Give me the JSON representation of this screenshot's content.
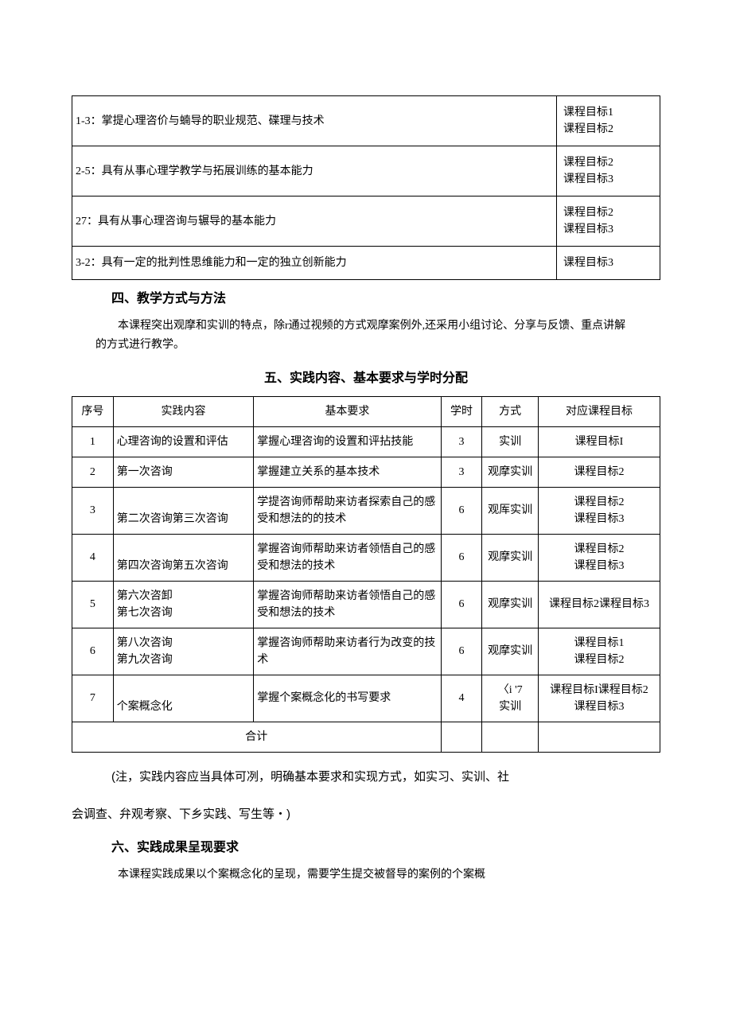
{
  "table1": {
    "rows": [
      {
        "req": "1-3：掌提心理咨价与蝻导的职业规范、碟理与技术",
        "goals": "课程目标1\n课程目标2"
      },
      {
        "req": "2-5：具有从事心理学教学与拓展训练的基本能力",
        "goals": "课程目标2\n课程目标3"
      },
      {
        "req": "27：具有从事心理咨询与辗导的基本能力",
        "goals": "课程目标2\n课程目标3"
      },
      {
        "req": "3-2：具有一定的批判性思维能力和一定的独立创新能力",
        "goals": "课程目标3"
      }
    ]
  },
  "section4": {
    "heading": "四、教学方式与方法",
    "body": "本课程突出观摩和实训的特点，除r通过视频的方式观摩案例外,还采用小组讨论、分享与反馈、重点讲解的方式进行教学。"
  },
  "section5": {
    "heading": "五、实践内容、基本要求与学时分配",
    "columns": [
      "序号",
      "实践内容",
      "基本要求",
      "学时",
      "方式",
      "对应课程目标"
    ],
    "rows": [
      {
        "seq": "1",
        "content": "心理咨询的设置和评估",
        "req": "掌握心理咨询的设置和评拈技能",
        "hours": "3",
        "mode": "实训",
        "goal": "课程目标I"
      },
      {
        "seq": "2",
        "content": "第一次咨询",
        "req": "掌握建立关系的基本技术",
        "hours": "3",
        "mode": "观摩实训",
        "goal": "课程目标2"
      },
      {
        "seq": "3",
        "content": "第二次咨询第三次咨询",
        "req": "学提咨询师帮助来访者探索自己的感受和想法的的技术",
        "hours": "6",
        "mode": "观厍实训",
        "goal": "课程目标2\n课程目标3"
      },
      {
        "seq": "4",
        "content": "第四次咨询第五次咨询",
        "req": "掌握咨询师帮助来访者领悟自己的感受和想法的技术",
        "hours": "6",
        "mode": "观摩实训",
        "goal": "课程目标2\n课程目标3"
      },
      {
        "seq": "5",
        "content": "第六次咨卸\n第七次咨询",
        "req": "掌握咨询师帮助来访者领悟自己的感受和想法的技术",
        "hours": "6",
        "mode": "观摩实训",
        "goal": "课程目标2课程目标3"
      },
      {
        "seq": "6",
        "content": "第八次咨询\n第九次咨询",
        "req": "掌握咨询师帮助来访者行为改变的技术",
        "hours": "6",
        "mode": "观摩实训",
        "goal": "课程目标1\n课程目标2"
      },
      {
        "seq": "7",
        "content": "个案概念化",
        "req": "掌握个案概念化的书写要求",
        "hours": "4",
        "mode": "〈i '7\n实训",
        "goal": "课程目标I课程目标2\n课程目标3"
      }
    ],
    "total_label": "合计"
  },
  "note": {
    "line1": "(注，实践内容应当具体可冽，明确基本要求和实现方式，如实习、实训、社",
    "line2": "会调查、弁观考察、下乡实践、写生等・)"
  },
  "section6": {
    "heading": "六、实践成果呈现要求",
    "body": "本课程实践成果以个案概念化的呈现，需要学生提交被督导的案例的个案概"
  }
}
